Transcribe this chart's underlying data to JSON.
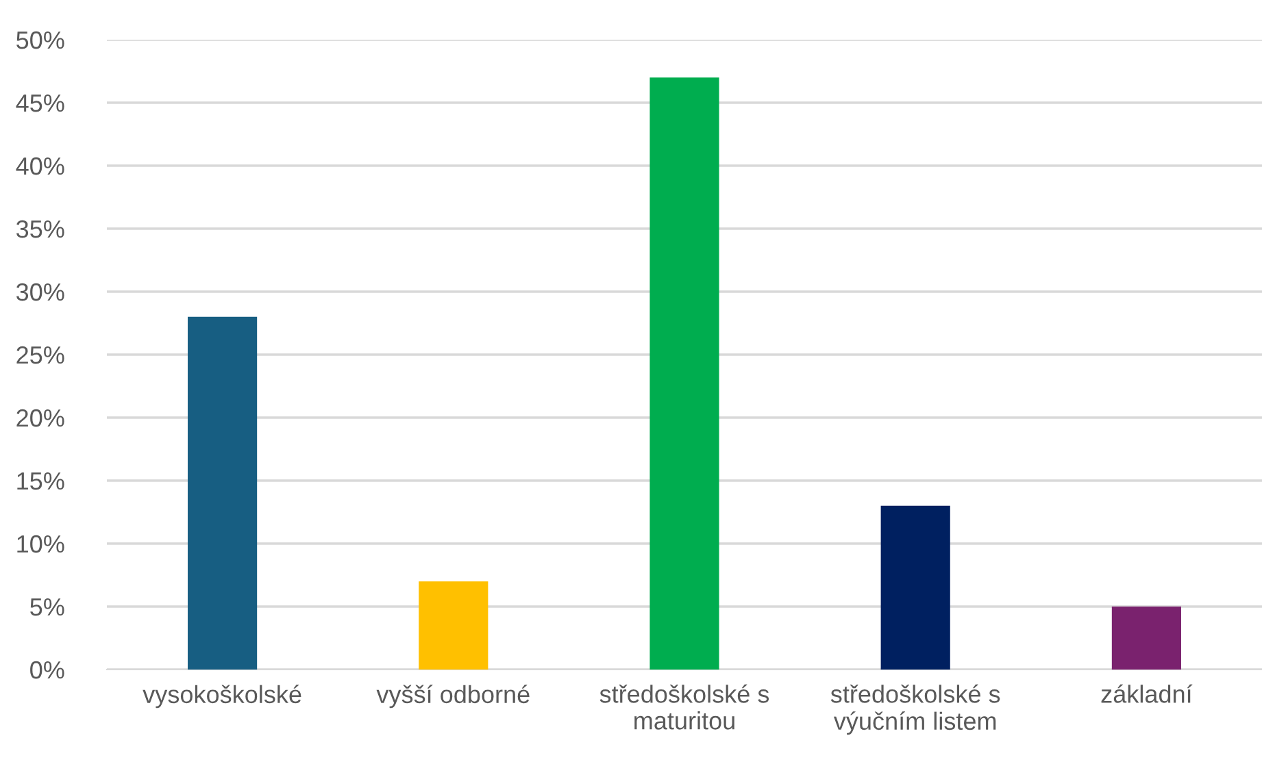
{
  "chart_data": {
    "type": "bar",
    "categories": [
      "vysokoškolské",
      "vyšší odborné",
      "středoškolské s maturitou",
      "středoškolské s výučním listem",
      "základní"
    ],
    "values": [
      28,
      7,
      47,
      13,
      5
    ],
    "colors": [
      "#175e82",
      "#ffc000",
      "#00ad4f",
      "#002060",
      "#7a226e"
    ],
    "ylim": [
      0,
      50
    ],
    "yticks": [
      {
        "value": 0,
        "label": "0%"
      },
      {
        "value": 5,
        "label": "5%"
      },
      {
        "value": 10,
        "label": "10%"
      },
      {
        "value": 15,
        "label": "15%"
      },
      {
        "value": 20,
        "label": "20%"
      },
      {
        "value": 25,
        "label": "25%"
      },
      {
        "value": 30,
        "label": "30%"
      },
      {
        "value": 35,
        "label": "35%"
      },
      {
        "value": 40,
        "label": "40%"
      },
      {
        "value": 45,
        "label": "45%"
      },
      {
        "value": 50,
        "label": "50%"
      }
    ],
    "grid": "y",
    "legend": false
  }
}
